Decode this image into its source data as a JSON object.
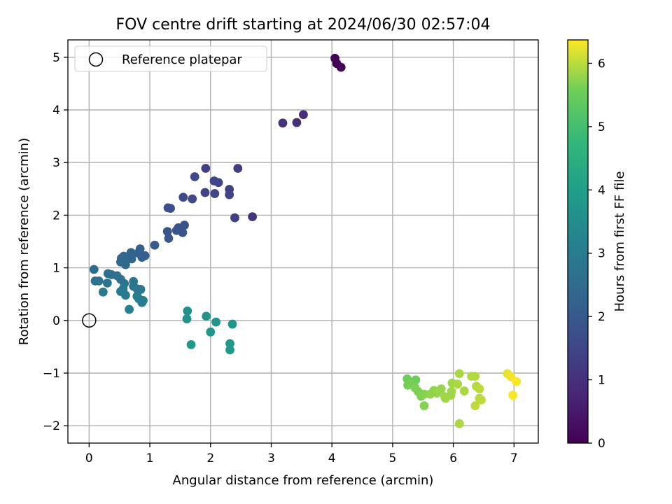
{
  "chart_data": {
    "type": "scatter",
    "title": "FOV centre drift starting at 2024/06/30 02:57:04",
    "xlabel": "Angular distance from reference (arcmin)",
    "ylabel": "Rotation from reference (arcmin)",
    "xlim": [
      -0.35,
      7.4
    ],
    "ylim": [
      -2.33,
      5.33
    ],
    "xticks": [
      0,
      1,
      2,
      3,
      4,
      5,
      6,
      7
    ],
    "yticks": [
      -2,
      -1,
      0,
      1,
      2,
      3,
      4,
      5
    ],
    "grid": true,
    "legend": {
      "location": "upper-left",
      "entries": [
        "Reference platepar"
      ]
    },
    "reference_point": {
      "x": 0,
      "y": 0
    },
    "colorbar": {
      "label": "Hours from first FF file",
      "range": [
        0,
        6.37
      ],
      "ticks": [
        0,
        1,
        2,
        3,
        4,
        5,
        6
      ],
      "colormap": "viridis"
    },
    "points": [
      {
        "x": 4.05,
        "y": 4.98,
        "t": 0.02
      },
      {
        "x": 4.08,
        "y": 4.88,
        "t": 0.05
      },
      {
        "x": 4.15,
        "y": 4.81,
        "t": 0.08
      },
      {
        "x": 3.53,
        "y": 3.91,
        "t": 0.95
      },
      {
        "x": 3.42,
        "y": 3.76,
        "t": 0.98
      },
      {
        "x": 3.19,
        "y": 3.75,
        "t": 1.0
      },
      {
        "x": 2.69,
        "y": 1.97,
        "t": 1.1
      },
      {
        "x": 2.45,
        "y": 2.89,
        "t": 1.3
      },
      {
        "x": 2.4,
        "y": 1.95,
        "t": 1.35
      },
      {
        "x": 2.31,
        "y": 2.49,
        "t": 1.4
      },
      {
        "x": 2.31,
        "y": 2.39,
        "t": 1.45
      },
      {
        "x": 2.13,
        "y": 2.62,
        "t": 1.45
      },
      {
        "x": 2.06,
        "y": 2.65,
        "t": 1.5
      },
      {
        "x": 2.07,
        "y": 2.41,
        "t": 1.5
      },
      {
        "x": 1.92,
        "y": 2.89,
        "t": 1.35
      },
      {
        "x": 1.91,
        "y": 2.43,
        "t": 1.45
      },
      {
        "x": 1.74,
        "y": 2.73,
        "t": 1.55
      },
      {
        "x": 1.7,
        "y": 2.31,
        "t": 1.6
      },
      {
        "x": 1.55,
        "y": 2.34,
        "t": 1.65
      },
      {
        "x": 1.34,
        "y": 2.13,
        "t": 1.7
      },
      {
        "x": 1.3,
        "y": 2.14,
        "t": 1.75
      },
      {
        "x": 1.57,
        "y": 1.81,
        "t": 1.8
      },
      {
        "x": 1.54,
        "y": 1.67,
        "t": 1.85
      },
      {
        "x": 1.47,
        "y": 1.76,
        "t": 1.85
      },
      {
        "x": 1.44,
        "y": 1.71,
        "t": 1.9
      },
      {
        "x": 1.29,
        "y": 1.69,
        "t": 1.9
      },
      {
        "x": 1.31,
        "y": 1.56,
        "t": 1.95
      },
      {
        "x": 1.08,
        "y": 1.43,
        "t": 2.05
      },
      {
        "x": 0.92,
        "y": 1.23,
        "t": 2.1
      },
      {
        "x": 0.87,
        "y": 1.2,
        "t": 2.15
      },
      {
        "x": 0.84,
        "y": 1.36,
        "t": 2.2
      },
      {
        "x": 0.81,
        "y": 1.28,
        "t": 2.2
      },
      {
        "x": 0.69,
        "y": 1.29,
        "t": 2.25
      },
      {
        "x": 0.7,
        "y": 1.17,
        "t": 2.3
      },
      {
        "x": 0.63,
        "y": 1.21,
        "t": 2.3
      },
      {
        "x": 0.57,
        "y": 1.22,
        "t": 2.35
      },
      {
        "x": 0.53,
        "y": 1.18,
        "t": 2.35
      },
      {
        "x": 0.52,
        "y": 1.11,
        "t": 2.4
      },
      {
        "x": 0.6,
        "y": 1.06,
        "t": 2.4
      },
      {
        "x": 0.08,
        "y": 0.97,
        "t": 2.55
      },
      {
        "x": 0.31,
        "y": 0.89,
        "t": 2.6
      },
      {
        "x": 0.37,
        "y": 0.87,
        "t": 2.6
      },
      {
        "x": 0.46,
        "y": 0.85,
        "t": 2.65
      },
      {
        "x": 0.52,
        "y": 0.78,
        "t": 2.65
      },
      {
        "x": 0.1,
        "y": 0.75,
        "t": 2.7
      },
      {
        "x": 0.16,
        "y": 0.75,
        "t": 2.7
      },
      {
        "x": 0.3,
        "y": 0.71,
        "t": 2.75
      },
      {
        "x": 0.58,
        "y": 0.7,
        "t": 2.75
      },
      {
        "x": 0.73,
        "y": 0.74,
        "t": 2.8
      },
      {
        "x": 0.73,
        "y": 0.65,
        "t": 2.8
      },
      {
        "x": 0.79,
        "y": 0.6,
        "t": 2.85
      },
      {
        "x": 0.85,
        "y": 0.59,
        "t": 2.85
      },
      {
        "x": 0.56,
        "y": 0.6,
        "t": 2.9
      },
      {
        "x": 0.52,
        "y": 0.55,
        "t": 2.9
      },
      {
        "x": 0.23,
        "y": 0.54,
        "t": 2.95
      },
      {
        "x": 0.6,
        "y": 0.48,
        "t": 2.95
      },
      {
        "x": 0.79,
        "y": 0.46,
        "t": 3.0
      },
      {
        "x": 0.82,
        "y": 0.41,
        "t": 3.0
      },
      {
        "x": 0.89,
        "y": 0.38,
        "t": 3.05
      },
      {
        "x": 0.87,
        "y": 0.34,
        "t": 3.05
      },
      {
        "x": 0.66,
        "y": 0.21,
        "t": 3.1
      },
      {
        "x": 1.62,
        "y": 0.18,
        "t": 3.6
      },
      {
        "x": 1.61,
        "y": 0.03,
        "t": 3.65
      },
      {
        "x": 1.93,
        "y": 0.08,
        "t": 3.65
      },
      {
        "x": 2.09,
        "y": -0.03,
        "t": 3.7
      },
      {
        "x": 2.36,
        "y": -0.07,
        "t": 3.75
      },
      {
        "x": 2.0,
        "y": -0.22,
        "t": 3.75
      },
      {
        "x": 1.68,
        "y": -0.46,
        "t": 3.8
      },
      {
        "x": 2.32,
        "y": -0.44,
        "t": 3.8
      },
      {
        "x": 2.32,
        "y": -0.56,
        "t": 3.85
      },
      {
        "x": 5.24,
        "y": -1.11,
        "t": 5.55
      },
      {
        "x": 5.38,
        "y": -1.13,
        "t": 5.55
      },
      {
        "x": 5.28,
        "y": -1.2,
        "t": 5.6
      },
      {
        "x": 5.25,
        "y": -1.23,
        "t": 5.6
      },
      {
        "x": 5.37,
        "y": -1.28,
        "t": 5.65
      },
      {
        "x": 5.42,
        "y": -1.35,
        "t": 5.65
      },
      {
        "x": 5.47,
        "y": -1.44,
        "t": 5.65
      },
      {
        "x": 5.52,
        "y": -1.4,
        "t": 5.7
      },
      {
        "x": 5.52,
        "y": -1.62,
        "t": 5.7
      },
      {
        "x": 5.62,
        "y": -1.4,
        "t": 5.75
      },
      {
        "x": 5.68,
        "y": -1.33,
        "t": 5.75
      },
      {
        "x": 5.73,
        "y": -1.38,
        "t": 5.8
      },
      {
        "x": 5.8,
        "y": -1.3,
        "t": 5.8
      },
      {
        "x": 5.86,
        "y": -1.45,
        "t": 5.8
      },
      {
        "x": 5.87,
        "y": -1.48,
        "t": 5.85
      },
      {
        "x": 5.97,
        "y": -1.35,
        "t": 5.85
      },
      {
        "x": 5.96,
        "y": -1.42,
        "t": 5.85
      },
      {
        "x": 5.98,
        "y": -1.19,
        "t": 5.85
      },
      {
        "x": 6.07,
        "y": -1.21,
        "t": 5.9
      },
      {
        "x": 6.1,
        "y": -1.01,
        "t": 5.9
      },
      {
        "x": 6.18,
        "y": -1.34,
        "t": 5.9
      },
      {
        "x": 6.1,
        "y": -1.96,
        "t": 5.9
      },
      {
        "x": 6.3,
        "y": -1.06,
        "t": 5.95
      },
      {
        "x": 6.36,
        "y": -1.06,
        "t": 5.95
      },
      {
        "x": 6.38,
        "y": -1.25,
        "t": 5.95
      },
      {
        "x": 6.43,
        "y": -1.3,
        "t": 6.0
      },
      {
        "x": 6.43,
        "y": -1.48,
        "t": 6.0
      },
      {
        "x": 6.46,
        "y": -1.51,
        "t": 6.0
      },
      {
        "x": 6.36,
        "y": -1.62,
        "t": 6.0
      },
      {
        "x": 6.89,
        "y": -1.01,
        "t": 6.25
      },
      {
        "x": 6.95,
        "y": -1.07,
        "t": 6.3
      },
      {
        "x": 7.04,
        "y": -1.16,
        "t": 6.35
      },
      {
        "x": 6.98,
        "y": -1.42,
        "t": 6.35
      }
    ]
  }
}
